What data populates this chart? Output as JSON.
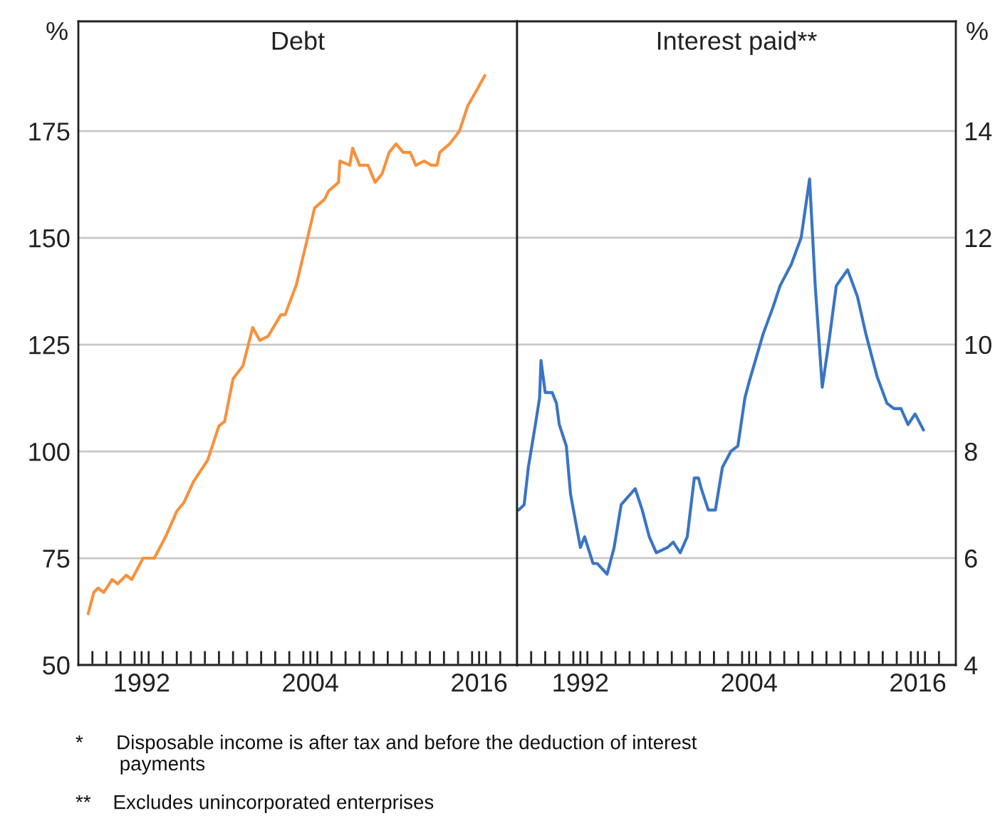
{
  "chart_data": [
    {
      "type": "line",
      "title": "Debt",
      "ylabel": "%",
      "grid": "y",
      "xlim": [
        1988,
        2019.2
      ],
      "ylim": [
        50,
        200.7
      ],
      "yticks": [
        50,
        75,
        100,
        125,
        150,
        175
      ],
      "xticks": [
        {
          "value": 1989,
          "label": null
        },
        {
          "value": 1990,
          "label": null
        },
        {
          "value": 1991,
          "label": null
        },
        {
          "value": 1992,
          "label": null
        },
        {
          "value": 1992.5,
          "label": "1992"
        },
        {
          "value": 1993,
          "label": null
        },
        {
          "value": 1994,
          "label": null
        },
        {
          "value": 1995,
          "label": null
        },
        {
          "value": 1996,
          "label": null
        },
        {
          "value": 1997,
          "label": null
        },
        {
          "value": 1998,
          "label": null
        },
        {
          "value": 1999,
          "label": null
        },
        {
          "value": 2000,
          "label": null
        },
        {
          "value": 2001,
          "label": null
        },
        {
          "value": 2002,
          "label": null
        },
        {
          "value": 2003,
          "label": null
        },
        {
          "value": 2004,
          "label": null
        },
        {
          "value": 2004.5,
          "label": "2004"
        },
        {
          "value": 2005,
          "label": null
        },
        {
          "value": 2006,
          "label": null
        },
        {
          "value": 2007,
          "label": null
        },
        {
          "value": 2008,
          "label": null
        },
        {
          "value": 2009,
          "label": null
        },
        {
          "value": 2010,
          "label": null
        },
        {
          "value": 2011,
          "label": null
        },
        {
          "value": 2012,
          "label": null
        },
        {
          "value": 2013,
          "label": null
        },
        {
          "value": 2014,
          "label": null
        },
        {
          "value": 2015,
          "label": null
        },
        {
          "value": 2016,
          "label": null
        },
        {
          "value": 2016.5,
          "label": "2016"
        },
        {
          "value": 2017,
          "label": null
        },
        {
          "value": 2018,
          "label": null
        }
      ],
      "annotations": [
        "*      Disposable income is after tax and before the deduction of interest\n        payments",
        "**    Excludes unincorporated enterprises"
      ],
      "series": [
        {
          "color": "#f7913d",
          "x": [
            1988.7,
            1989.1,
            1989.4,
            1989.8,
            1990.4,
            1990.8,
            1991.4,
            1991.8,
            1992.6,
            1993.4,
            1994.2,
            1995.0,
            1995.5,
            1996.2,
            1997.2,
            1998.0,
            1998.4,
            1999.0,
            1999.7,
            2000.4,
            2000.9,
            2001.5,
            2002.4,
            2002.7,
            2003.5,
            2004.3,
            2004.8,
            2005.5,
            2005.8,
            2006.5,
            2006.6,
            2007.3,
            2007.5,
            2008.0,
            2008.6,
            2009.1,
            2009.6,
            2010.1,
            2010.6,
            2011.1,
            2011.6,
            2012.0,
            2012.6,
            2013.1,
            2013.5,
            2013.7,
            2014.4,
            2015.1,
            2015.7,
            2016.4,
            2016.9
          ],
          "values": [
            62,
            67,
            68,
            67,
            70,
            69,
            71,
            70,
            75,
            75,
            80,
            86,
            88,
            93,
            98,
            106,
            107,
            117,
            120,
            129,
            126,
            127,
            132,
            132,
            139,
            150,
            157,
            159,
            161,
            163,
            168,
            167,
            171,
            167,
            167,
            163,
            165,
            170,
            172,
            170,
            170,
            167,
            168,
            167,
            167,
            170,
            172,
            175,
            181,
            185,
            188
          ]
        }
      ]
    },
    {
      "type": "line",
      "title": "Interest paid**",
      "ylabel": "%",
      "grid": "y",
      "xlim": [
        1988,
        2019.2
      ],
      "ylim": [
        4,
        16.05
      ],
      "yticks": [
        4,
        6,
        8,
        10,
        12,
        14
      ],
      "xticks": [
        {
          "value": 1989,
          "label": null
        },
        {
          "value": 1990,
          "label": null
        },
        {
          "value": 1991,
          "label": null
        },
        {
          "value": 1992,
          "label": null
        },
        {
          "value": 1992.5,
          "label": "1992"
        },
        {
          "value": 1993,
          "label": null
        },
        {
          "value": 1994,
          "label": null
        },
        {
          "value": 1995,
          "label": null
        },
        {
          "value": 1996,
          "label": null
        },
        {
          "value": 1997,
          "label": null
        },
        {
          "value": 1998,
          "label": null
        },
        {
          "value": 1999,
          "label": null
        },
        {
          "value": 2000,
          "label": null
        },
        {
          "value": 2001,
          "label": null
        },
        {
          "value": 2002,
          "label": null
        },
        {
          "value": 2003,
          "label": null
        },
        {
          "value": 2004,
          "label": null
        },
        {
          "value": 2004.5,
          "label": "2004"
        },
        {
          "value": 2005,
          "label": null
        },
        {
          "value": 2006,
          "label": null
        },
        {
          "value": 2007,
          "label": null
        },
        {
          "value": 2008,
          "label": null
        },
        {
          "value": 2009,
          "label": null
        },
        {
          "value": 2010,
          "label": null
        },
        {
          "value": 2011,
          "label": null
        },
        {
          "value": 2012,
          "label": null
        },
        {
          "value": 2013,
          "label": null
        },
        {
          "value": 2014,
          "label": null
        },
        {
          "value": 2015,
          "label": null
        },
        {
          "value": 2016,
          "label": null
        },
        {
          "value": 2016.5,
          "label": "2016"
        },
        {
          "value": 2017,
          "label": null
        },
        {
          "value": 2018,
          "label": null
        }
      ],
      "series": [
        {
          "color": "#3a75c4",
          "x": [
            1988.1,
            1988.5,
            1988.8,
            1989.3,
            1989.6,
            1989.7,
            1990.0,
            1990.5,
            1990.8,
            1991.0,
            1991.5,
            1991.8,
            1992.5,
            1992.8,
            1993.4,
            1993.7,
            1994.4,
            1994.9,
            1995.4,
            1996.4,
            1996.9,
            1997.4,
            1997.9,
            1998.7,
            1999.1,
            1999.6,
            2000.1,
            2000.6,
            2000.9,
            2001.1,
            2001.6,
            2002.1,
            2002.6,
            2003.2,
            2003.7,
            2004.2,
            2004.5,
            2005.5,
            2006.2,
            2006.7,
            2007.5,
            2008.2,
            2008.8,
            2009.2,
            2009.7,
            2010.2,
            2010.7,
            2011.5,
            2012.2,
            2012.8,
            2013.6,
            2014.3,
            2014.8,
            2015.3,
            2015.8,
            2016.3,
            2016.9
          ],
          "values": [
            6.9,
            7.0,
            7.7,
            8.5,
            9.0,
            9.7,
            9.1,
            9.1,
            8.9,
            8.5,
            8.1,
            7.2,
            6.2,
            6.4,
            5.9,
            5.9,
            5.7,
            6.2,
            7.0,
            7.3,
            6.9,
            6.4,
            6.1,
            6.2,
            6.3,
            6.1,
            6.4,
            7.5,
            7.5,
            7.3,
            6.9,
            6.9,
            7.7,
            8.0,
            8.1,
            9.0,
            9.3,
            10.2,
            10.7,
            11.1,
            11.5,
            12.0,
            13.1,
            11.1,
            9.2,
            10.1,
            11.1,
            11.4,
            10.9,
            10.2,
            9.4,
            8.9,
            8.8,
            8.8,
            8.5,
            8.7,
            8.4
          ]
        }
      ]
    }
  ]
}
